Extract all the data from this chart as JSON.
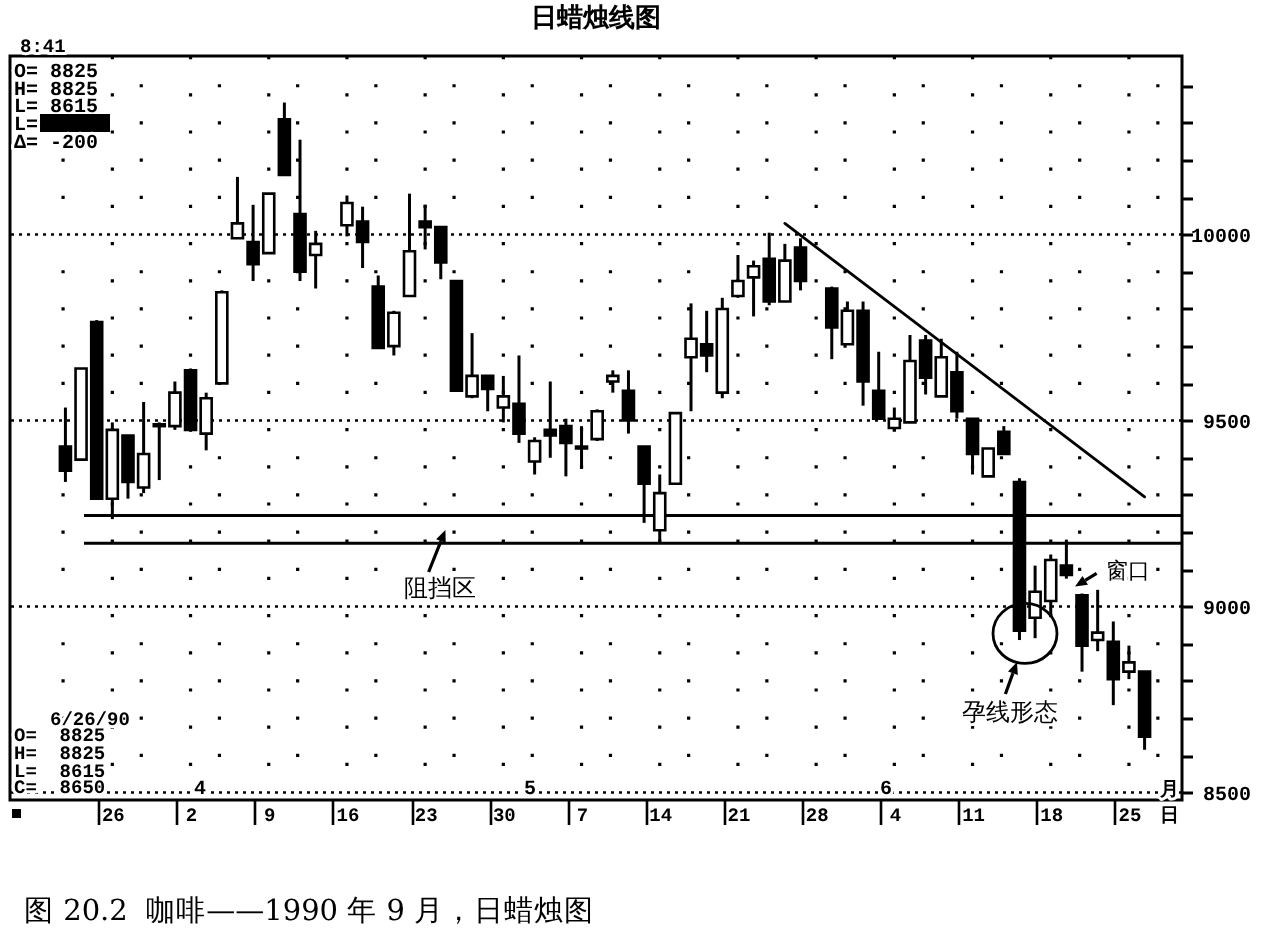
{
  "chart_data": {
    "type": "candlestick",
    "title": "日蜡烛线图",
    "categories": [
      null,
      null,
      null,
      "26",
      null,
      null,
      null,
      null,
      "2",
      null,
      null,
      null,
      null,
      "9",
      null,
      null,
      null,
      null,
      "16",
      null,
      null,
      null,
      null,
      "23",
      null,
      null,
      null,
      null,
      "30",
      null,
      null,
      null,
      null,
      "7",
      null,
      null,
      null,
      null,
      "14",
      null,
      null,
      null,
      null,
      "21",
      null,
      null,
      null,
      null,
      "28",
      null,
      null,
      null,
      null,
      "4",
      null,
      null,
      null,
      null,
      "11",
      null,
      null,
      null,
      null,
      "18",
      null,
      null,
      null,
      null,
      "25",
      null
    ],
    "ohlc": [
      [
        9430,
        9535,
        9335,
        9365
      ],
      [
        9395,
        9640,
        9395,
        9640
      ],
      [
        9765,
        9770,
        9290,
        9290
      ],
      [
        9290,
        9495,
        9235,
        9475
      ],
      [
        9460,
        9460,
        9290,
        9335
      ],
      [
        9320,
        9550,
        9305,
        9410
      ],
      [
        9490,
        9495,
        9340,
        9485
      ],
      [
        9485,
        9605,
        9475,
        9575
      ],
      [
        9635,
        9640,
        9470,
        9475
      ],
      [
        9465,
        9575,
        9420,
        9560
      ],
      [
        9600,
        9850,
        9600,
        9845
      ],
      [
        9990,
        10155,
        9990,
        10030
      ],
      [
        9980,
        10080,
        9875,
        9920
      ],
      [
        9950,
        10110,
        9950,
        10110
      ],
      [
        10310,
        10355,
        10160,
        10160
      ],
      [
        10055,
        10255,
        9875,
        9900
      ],
      [
        9945,
        10010,
        9855,
        9975
      ],
      null,
      [
        10025,
        10105,
        9995,
        10085
      ],
      [
        10035,
        10075,
        9910,
        9980
      ],
      [
        9860,
        9890,
        9695,
        9695
      ],
      [
        9700,
        9795,
        9675,
        9790
      ],
      [
        9835,
        10110,
        9835,
        9955
      ],
      [
        10035,
        10080,
        9960,
        10020
      ],
      [
        10020,
        10020,
        9880,
        9925
      ],
      [
        9875,
        9875,
        9580,
        9580
      ],
      [
        9565,
        9735,
        9560,
        9620
      ],
      [
        9620,
        9620,
        9525,
        9585
      ],
      [
        9535,
        9620,
        9495,
        9565
      ],
      [
        9545,
        9675,
        9440,
        9465
      ],
      [
        9390,
        9455,
        9355,
        9445
      ],
      [
        9475,
        9605,
        9400,
        9460
      ],
      [
        9485,
        9505,
        9350,
        9440
      ],
      [
        9430,
        9485,
        9370,
        9425
      ],
      [
        9450,
        9530,
        9445,
        9525
      ],
      [
        9605,
        9635,
        9575,
        9620
      ],
      [
        9580,
        9635,
        9465,
        9500
      ],
      [
        9430,
        9430,
        9225,
        9330
      ],
      [
        9205,
        9355,
        9175,
        9305
      ],
      [
        9330,
        9520,
        9330,
        9520
      ],
      [
        9670,
        9815,
        9525,
        9720
      ],
      [
        9705,
        9795,
        9630,
        9675
      ],
      [
        9575,
        9830,
        9560,
        9800
      ],
      [
        9835,
        9945,
        9830,
        9875
      ],
      [
        9885,
        9930,
        9780,
        9915
      ],
      [
        9935,
        10005,
        9810,
        9820
      ],
      [
        9820,
        9975,
        9820,
        9930
      ],
      [
        9965,
        9990,
        9850,
        9875
      ],
      null,
      [
        9855,
        9860,
        9665,
        9750
      ],
      [
        9705,
        9820,
        9705,
        9795
      ],
      [
        9795,
        9820,
        9540,
        9605
      ],
      [
        9580,
        9685,
        9505,
        9505
      ],
      [
        9480,
        9535,
        9470,
        9505
      ],
      [
        9495,
        9730,
        9495,
        9660
      ],
      [
        9715,
        9730,
        9570,
        9615
      ],
      [
        9565,
        9720,
        9565,
        9670
      ],
      [
        9630,
        9685,
        9505,
        9525
      ],
      [
        9505,
        9505,
        9355,
        9410
      ],
      [
        9350,
        9425,
        9350,
        9425
      ],
      [
        9470,
        9485,
        9410,
        9410
      ],
      [
        9335,
        9345,
        8910,
        8935
      ],
      [
        8970,
        9110,
        8915,
        9040
      ],
      [
        9015,
        9140,
        8975,
        9125
      ],
      [
        9110,
        9180,
        9075,
        9085
      ],
      [
        9030,
        9035,
        8825,
        8895
      ],
      [
        8910,
        9045,
        8880,
        8930
      ],
      [
        8905,
        8960,
        8735,
        8805
      ],
      [
        8825,
        8895,
        8805,
        8850
      ],
      [
        8825,
        8825,
        8615,
        8650
      ]
    ],
    "color": "#000000",
    "series": [
      {
        "type": "line",
        "color": "#000000",
        "values": [
          null,
          null,
          null,
          null,
          null,
          null,
          null,
          null,
          null,
          null,
          null,
          null,
          null,
          null,
          null,
          null,
          null,
          null,
          null,
          null,
          null,
          null,
          null,
          null,
          null,
          null,
          null,
          null,
          null,
          null,
          null,
          null,
          null,
          null,
          null,
          null,
          null,
          null,
          null,
          null,
          null,
          null,
          null,
          null,
          null,
          null,
          10030,
          null,
          null,
          null,
          null,
          null,
          null,
          null,
          null,
          null,
          null,
          null,
          null,
          null,
          null,
          null,
          null,
          null,
          null,
          null,
          null,
          null,
          null,
          9295
        ]
      }
    ],
    "ylim": [
      8480,
      10480
    ],
    "yticks": [
      8500,
      {
        "value": 8600,
        "label": null
      },
      {
        "value": 8700,
        "label": null
      },
      {
        "value": 8800,
        "label": null
      },
      {
        "value": 8900,
        "label": null
      },
      9000,
      {
        "value": 9100,
        "label": null
      },
      {
        "value": 9200,
        "label": null
      },
      {
        "value": 9300,
        "label": null
      },
      {
        "value": 9400,
        "label": null
      },
      9500,
      {
        "value": 9600,
        "label": null
      },
      {
        "value": 9700,
        "label": null
      },
      {
        "value": 9800,
        "label": null
      },
      {
        "value": 9900,
        "label": null
      },
      10000,
      {
        "value": 10100,
        "label": null
      },
      {
        "value": 10200,
        "label": null
      },
      {
        "value": 10300,
        "label": null
      },
      {
        "value": 10400,
        "label": null
      }
    ],
    "grid": true,
    "ref_lines": [
      {
        "axis": "y",
        "value": 9245
      },
      {
        "axis": "y",
        "value": 9170,
        "label": "阻挡区"
      }
    ],
    "annotations": [
      "8:41",
      "O= 8825",
      "H= 8825",
      "L= 8615",
      "L=",
      "Δ= -200",
      "6/26/90",
      "O=  8825",
      "H=  8825",
      "L=  8615",
      "C=  8650",
      "4",
      "5",
      "6",
      "月",
      "日",
      "孕线形态",
      "窗口",
      "图 20.2  咖啡——1990 年 9 月，日蜡烛图"
    ]
  }
}
